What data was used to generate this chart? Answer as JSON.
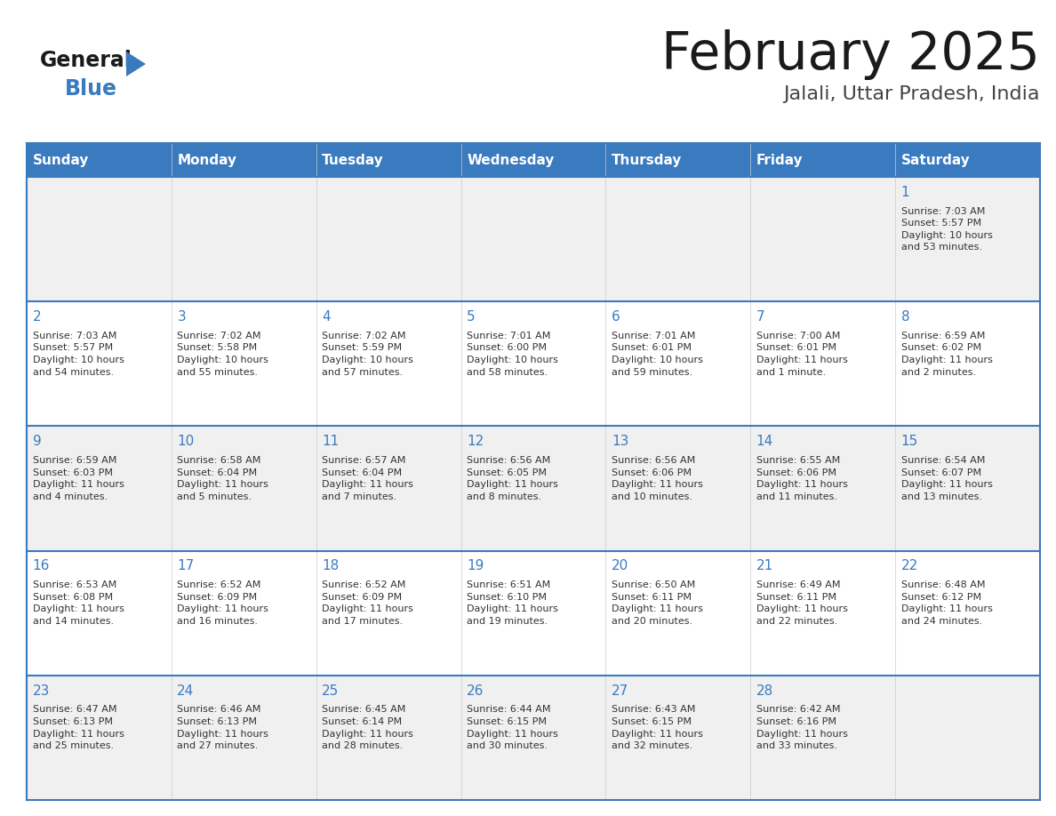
{
  "title": "February 2025",
  "subtitle": "Jalali, Uttar Pradesh, India",
  "header_color": "#3a7abf",
  "header_text_color": "#ffffff",
  "cell_bg_even": "#f0f0f0",
  "cell_bg_odd": "#ffffff",
  "day_headers": [
    "Sunday",
    "Monday",
    "Tuesday",
    "Wednesday",
    "Thursday",
    "Friday",
    "Saturday"
  ],
  "title_color": "#1a1a1a",
  "subtitle_color": "#444444",
  "line_color": "#3a7abf",
  "day_number_color": "#3a7abf",
  "text_color": "#333333",
  "logo_general_color": "#1a1a1a",
  "logo_blue_color": "#3a7abf",
  "weeks": [
    [
      {
        "day": null,
        "text": ""
      },
      {
        "day": null,
        "text": ""
      },
      {
        "day": null,
        "text": ""
      },
      {
        "day": null,
        "text": ""
      },
      {
        "day": null,
        "text": ""
      },
      {
        "day": null,
        "text": ""
      },
      {
        "day": 1,
        "text": "Sunrise: 7:03 AM\nSunset: 5:57 PM\nDaylight: 10 hours\nand 53 minutes."
      }
    ],
    [
      {
        "day": 2,
        "text": "Sunrise: 7:03 AM\nSunset: 5:57 PM\nDaylight: 10 hours\nand 54 minutes."
      },
      {
        "day": 3,
        "text": "Sunrise: 7:02 AM\nSunset: 5:58 PM\nDaylight: 10 hours\nand 55 minutes."
      },
      {
        "day": 4,
        "text": "Sunrise: 7:02 AM\nSunset: 5:59 PM\nDaylight: 10 hours\nand 57 minutes."
      },
      {
        "day": 5,
        "text": "Sunrise: 7:01 AM\nSunset: 6:00 PM\nDaylight: 10 hours\nand 58 minutes."
      },
      {
        "day": 6,
        "text": "Sunrise: 7:01 AM\nSunset: 6:01 PM\nDaylight: 10 hours\nand 59 minutes."
      },
      {
        "day": 7,
        "text": "Sunrise: 7:00 AM\nSunset: 6:01 PM\nDaylight: 11 hours\nand 1 minute."
      },
      {
        "day": 8,
        "text": "Sunrise: 6:59 AM\nSunset: 6:02 PM\nDaylight: 11 hours\nand 2 minutes."
      }
    ],
    [
      {
        "day": 9,
        "text": "Sunrise: 6:59 AM\nSunset: 6:03 PM\nDaylight: 11 hours\nand 4 minutes."
      },
      {
        "day": 10,
        "text": "Sunrise: 6:58 AM\nSunset: 6:04 PM\nDaylight: 11 hours\nand 5 minutes."
      },
      {
        "day": 11,
        "text": "Sunrise: 6:57 AM\nSunset: 6:04 PM\nDaylight: 11 hours\nand 7 minutes."
      },
      {
        "day": 12,
        "text": "Sunrise: 6:56 AM\nSunset: 6:05 PM\nDaylight: 11 hours\nand 8 minutes."
      },
      {
        "day": 13,
        "text": "Sunrise: 6:56 AM\nSunset: 6:06 PM\nDaylight: 11 hours\nand 10 minutes."
      },
      {
        "day": 14,
        "text": "Sunrise: 6:55 AM\nSunset: 6:06 PM\nDaylight: 11 hours\nand 11 minutes."
      },
      {
        "day": 15,
        "text": "Sunrise: 6:54 AM\nSunset: 6:07 PM\nDaylight: 11 hours\nand 13 minutes."
      }
    ],
    [
      {
        "day": 16,
        "text": "Sunrise: 6:53 AM\nSunset: 6:08 PM\nDaylight: 11 hours\nand 14 minutes."
      },
      {
        "day": 17,
        "text": "Sunrise: 6:52 AM\nSunset: 6:09 PM\nDaylight: 11 hours\nand 16 minutes."
      },
      {
        "day": 18,
        "text": "Sunrise: 6:52 AM\nSunset: 6:09 PM\nDaylight: 11 hours\nand 17 minutes."
      },
      {
        "day": 19,
        "text": "Sunrise: 6:51 AM\nSunset: 6:10 PM\nDaylight: 11 hours\nand 19 minutes."
      },
      {
        "day": 20,
        "text": "Sunrise: 6:50 AM\nSunset: 6:11 PM\nDaylight: 11 hours\nand 20 minutes."
      },
      {
        "day": 21,
        "text": "Sunrise: 6:49 AM\nSunset: 6:11 PM\nDaylight: 11 hours\nand 22 minutes."
      },
      {
        "day": 22,
        "text": "Sunrise: 6:48 AM\nSunset: 6:12 PM\nDaylight: 11 hours\nand 24 minutes."
      }
    ],
    [
      {
        "day": 23,
        "text": "Sunrise: 6:47 AM\nSunset: 6:13 PM\nDaylight: 11 hours\nand 25 minutes."
      },
      {
        "day": 24,
        "text": "Sunrise: 6:46 AM\nSunset: 6:13 PM\nDaylight: 11 hours\nand 27 minutes."
      },
      {
        "day": 25,
        "text": "Sunrise: 6:45 AM\nSunset: 6:14 PM\nDaylight: 11 hours\nand 28 minutes."
      },
      {
        "day": 26,
        "text": "Sunrise: 6:44 AM\nSunset: 6:15 PM\nDaylight: 11 hours\nand 30 minutes."
      },
      {
        "day": 27,
        "text": "Sunrise: 6:43 AM\nSunset: 6:15 PM\nDaylight: 11 hours\nand 32 minutes."
      },
      {
        "day": 28,
        "text": "Sunrise: 6:42 AM\nSunset: 6:16 PM\nDaylight: 11 hours\nand 33 minutes."
      },
      {
        "day": null,
        "text": ""
      }
    ]
  ]
}
